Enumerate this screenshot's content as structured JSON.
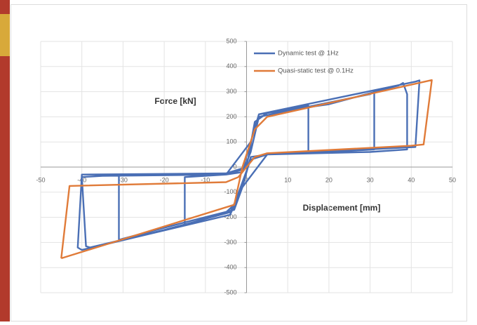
{
  "chart_data": {
    "type": "line",
    "x_label": "Displacement [mm]",
    "y_label": "Force [kN]",
    "xlim": [
      -50,
      50
    ],
    "xticks": [
      -50,
      -40,
      -30,
      -20,
      -10,
      0,
      10,
      20,
      30,
      40,
      50
    ],
    "ylim": [
      -500,
      500
    ],
    "yticks": [
      -500,
      -400,
      -300,
      -200,
      -100,
      0,
      100,
      200,
      300,
      400,
      500
    ],
    "grid": true,
    "series": [
      {
        "name": "Dynamic test @ 1Hz",
        "color": "#4a6fb5",
        "x": [
          0,
          2,
          5,
          15,
          15,
          5,
          1,
          -1,
          -3,
          -5,
          -15,
          -15,
          -5,
          -1,
          1,
          3,
          6,
          30,
          31,
          31,
          20,
          5,
          1,
          -1,
          -3,
          -15,
          -30,
          -31,
          -31,
          -20,
          -5,
          -1,
          1,
          3,
          20,
          37,
          38,
          39,
          39,
          30,
          5,
          -1,
          -4,
          -20,
          -38,
          -39,
          -40,
          -35,
          -5,
          1,
          3,
          41,
          42,
          41,
          35,
          5,
          -1,
          -4,
          -40,
          -41,
          -40,
          -5,
          0
        ],
        "y": [
          0,
          180,
          215,
          245,
          60,
          50,
          30,
          -60,
          -150,
          -180,
          -230,
          -40,
          -30,
          -20,
          60,
          200,
          210,
          290,
          300,
          70,
          60,
          50,
          40,
          -80,
          -170,
          -220,
          -285,
          -290,
          -30,
          -30,
          -30,
          -10,
          100,
          210,
          250,
          325,
          335,
          290,
          70,
          60,
          50,
          -80,
          -180,
          -250,
          -320,
          -315,
          -40,
          -35,
          -30,
          100,
          210,
          340,
          345,
          80,
          75,
          50,
          -80,
          -190,
          -330,
          -320,
          -30,
          -25,
          0
        ]
      },
      {
        "name": "Quasi-static test @ 0.1Hz",
        "color": "#e07b39",
        "x": [
          -45,
          -43,
          -5,
          -2,
          2,
          5,
          40,
          43,
          45,
          5,
          2,
          -1,
          -3,
          -45
        ],
        "y": [
          -363,
          -75,
          -60,
          -40,
          40,
          55,
          85,
          90,
          346,
          200,
          150,
          0,
          -150,
          -363
        ]
      }
    ]
  }
}
